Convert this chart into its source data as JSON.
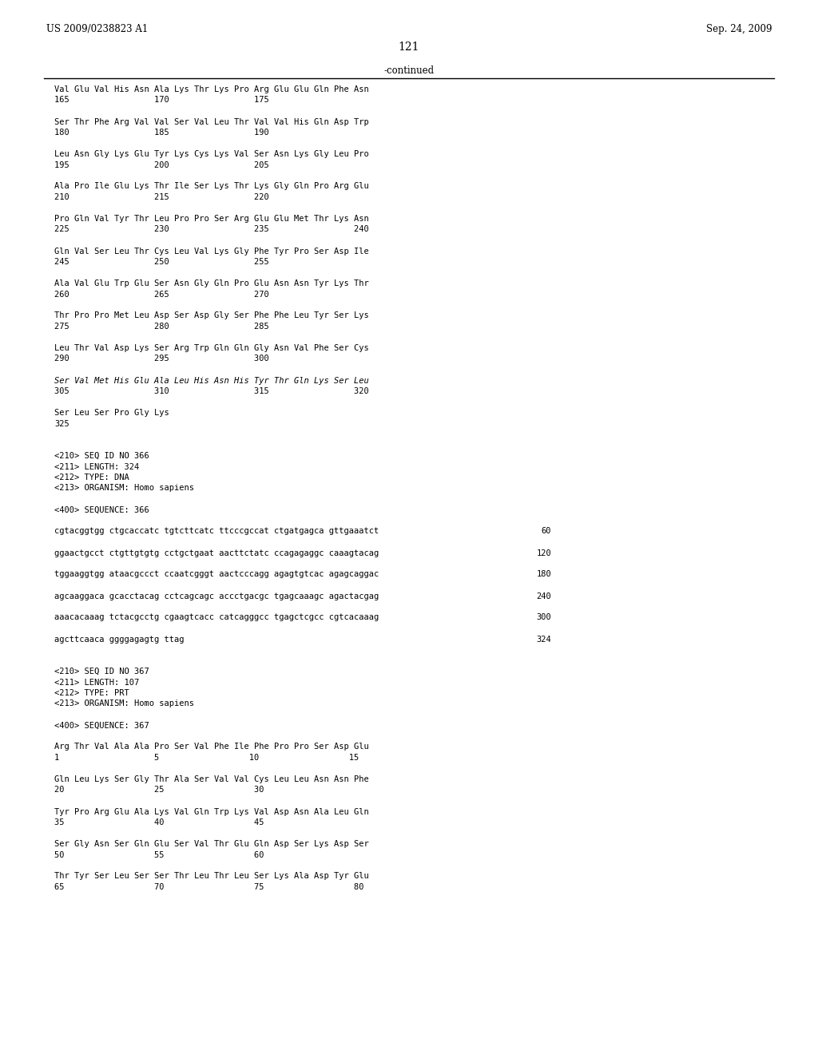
{
  "header_left": "US 2009/0238823 A1",
  "header_right": "Sep. 24, 2009",
  "page_number": "121",
  "continued_label": "-continued",
  "background_color": "#ffffff",
  "text_color": "#000000",
  "content": [
    {
      "type": "seq",
      "text": "Val Glu Val His Asn Ala Lys Thr Lys Pro Arg Glu Glu Gln Phe Asn",
      "nums": "165                 170                 175"
    },
    {
      "type": "gap"
    },
    {
      "type": "seq",
      "text": "Ser Thr Phe Arg Val Val Ser Val Leu Thr Val Val His Gln Asp Trp",
      "nums": "180                 185                 190"
    },
    {
      "type": "gap"
    },
    {
      "type": "seq",
      "text": "Leu Asn Gly Lys Glu Tyr Lys Cys Lys Val Ser Asn Lys Gly Leu Pro",
      "nums": "195                 200                 205"
    },
    {
      "type": "gap"
    },
    {
      "type": "seq",
      "text": "Ala Pro Ile Glu Lys Thr Ile Ser Lys Thr Lys Gly Gln Pro Arg Glu",
      "nums": "210                 215                 220"
    },
    {
      "type": "gap"
    },
    {
      "type": "seq",
      "text": "Pro Gln Val Tyr Thr Leu Pro Pro Ser Arg Glu Glu Met Thr Lys Asn",
      "nums": "225                 230                 235                 240"
    },
    {
      "type": "gap"
    },
    {
      "type": "seq",
      "text": "Gln Val Ser Leu Thr Cys Leu Val Lys Gly Phe Tyr Pro Ser Asp Ile",
      "nums": "245                 250                 255"
    },
    {
      "type": "gap"
    },
    {
      "type": "seq",
      "text": "Ala Val Glu Trp Glu Ser Asn Gly Gln Pro Glu Asn Asn Tyr Lys Thr",
      "nums": "260                 265                 270"
    },
    {
      "type": "gap"
    },
    {
      "type": "seq",
      "text": "Thr Pro Pro Met Leu Asp Ser Asp Gly Ser Phe Phe Leu Tyr Ser Lys",
      "nums": "275                 280                 285"
    },
    {
      "type": "gap"
    },
    {
      "type": "seq",
      "text": "Leu Thr Val Asp Lys Ser Arg Trp Gln Gln Gly Asn Val Phe Ser Cys",
      "nums": "290                 295                 300"
    },
    {
      "type": "gap"
    },
    {
      "type": "seq_italic",
      "text": "Ser Val Met His Glu Ala Leu His Asn His Tyr Thr Gln Lys Ser Leu",
      "nums": "305                 310                 315                 320"
    },
    {
      "type": "gap"
    },
    {
      "type": "seq",
      "text": "Ser Leu Ser Pro Gly Lys",
      "nums": "325"
    },
    {
      "type": "gap2"
    },
    {
      "type": "meta",
      "text": "<210> SEQ ID NO 366"
    },
    {
      "type": "meta",
      "text": "<211> LENGTH: 324"
    },
    {
      "type": "meta",
      "text": "<212> TYPE: DNA"
    },
    {
      "type": "meta",
      "text": "<213> ORGANISM: Homo sapiens"
    },
    {
      "type": "gap"
    },
    {
      "type": "meta",
      "text": "<400> SEQUENCE: 366"
    },
    {
      "type": "gap"
    },
    {
      "type": "dna",
      "text": "cgtacggtgg ctgcaccatc tgtcttcatc ttcccgccat ctgatgagca gttgaaatct",
      "num": "60"
    },
    {
      "type": "gap"
    },
    {
      "type": "dna",
      "text": "ggaactgcct ctgttgtgtg cctgctgaat aacttctatc ccagagaggc caaagtacag",
      "num": "120"
    },
    {
      "type": "gap"
    },
    {
      "type": "dna",
      "text": "tggaaggtgg ataacgccct ccaatcgggt aactcccagg agagtgtcac agagcaggac",
      "num": "180"
    },
    {
      "type": "gap"
    },
    {
      "type": "dna",
      "text": "agcaaggaca gcacctacag cctcagcagc accctgacgc tgagcaaagc agactacgag",
      "num": "240"
    },
    {
      "type": "gap"
    },
    {
      "type": "dna",
      "text": "aaacacaaag tctacgcctg cgaagtcacc catcagggcc tgagctcgcc cgtcacaaag",
      "num": "300"
    },
    {
      "type": "gap"
    },
    {
      "type": "dna",
      "text": "agcttcaaca ggggagagtg ttag",
      "num": "324"
    },
    {
      "type": "gap2"
    },
    {
      "type": "meta",
      "text": "<210> SEQ ID NO 367"
    },
    {
      "type": "meta",
      "text": "<211> LENGTH: 107"
    },
    {
      "type": "meta",
      "text": "<212> TYPE: PRT"
    },
    {
      "type": "meta",
      "text": "<213> ORGANISM: Homo sapiens"
    },
    {
      "type": "gap"
    },
    {
      "type": "meta",
      "text": "<400> SEQUENCE: 367"
    },
    {
      "type": "gap"
    },
    {
      "type": "seq",
      "text": "Arg Thr Val Ala Ala Pro Ser Val Phe Ile Phe Pro Pro Ser Asp Glu",
      "nums": "1                   5                  10                  15"
    },
    {
      "type": "gap"
    },
    {
      "type": "seq",
      "text": "Gln Leu Lys Ser Gly Thr Ala Ser Val Val Cys Leu Leu Asn Asn Phe",
      "nums": "20                  25                  30"
    },
    {
      "type": "gap"
    },
    {
      "type": "seq",
      "text": "Tyr Pro Arg Glu Ala Lys Val Gln Trp Lys Val Asp Asn Ala Leu Gln",
      "nums": "35                  40                  45"
    },
    {
      "type": "gap"
    },
    {
      "type": "seq",
      "text": "Ser Gly Asn Ser Gln Glu Ser Val Thr Glu Gln Asp Ser Lys Asp Ser",
      "nums": "50                  55                  60"
    },
    {
      "type": "gap"
    },
    {
      "type": "seq",
      "text": "Thr Tyr Ser Leu Ser Ser Thr Leu Thr Leu Ser Lys Ala Asp Tyr Glu",
      "nums": "65                  70                  75                  80"
    }
  ]
}
